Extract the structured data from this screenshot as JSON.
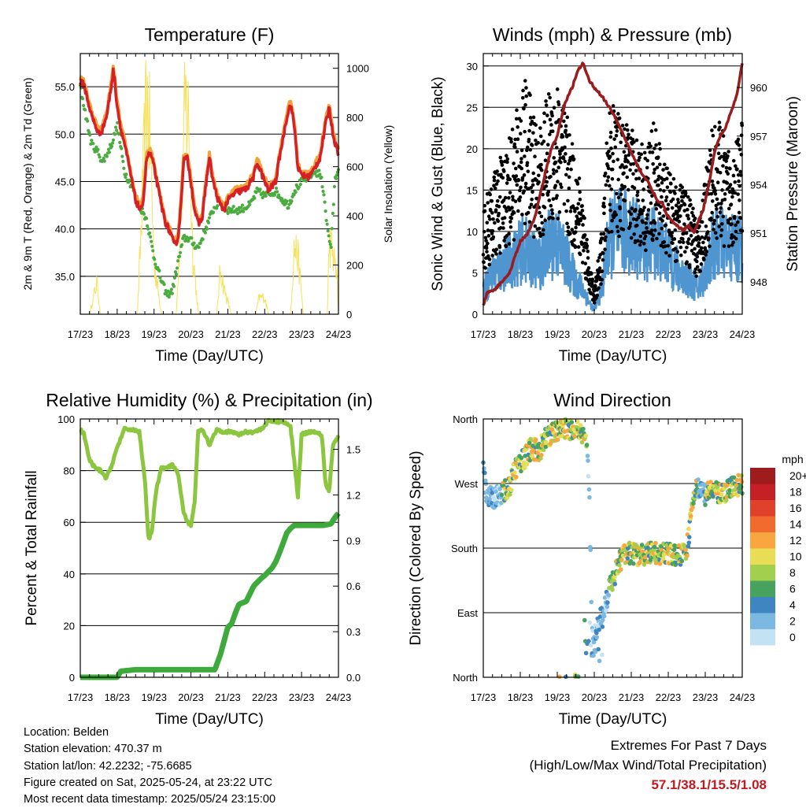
{
  "temperature_panel": {
    "title": "Temperature (F)",
    "xlabel": "Time (Day/UTC)",
    "ylabel_left": "2m & 9m T (Red, Orange) & 2m Td (Green)",
    "ylabel_right": "Solar Insolation (Yellow)"
  },
  "winds_panel": {
    "title": "Winds (mph) & Pressure (mb)",
    "xlabel": "Time (Day/UTC)",
    "ylabel_left": "Sonic Wind & Gust (Blue, Black)",
    "ylabel_right": "Station Pressure (Maroon)"
  },
  "rh_panel": {
    "title": "Relative Humidity (%) & Precipitation (in)",
    "xlabel": "Time (Day/UTC)",
    "ylabel_left": "Percent & Total Rainfall"
  },
  "wind_dir_panel": {
    "title": "Wind Direction",
    "xlabel": "Time (Day/UTC)",
    "ylabel_left": "Direction (Colored By Speed)",
    "legend_title": "mph"
  },
  "info": {
    "location": "Location: Belden",
    "elevation": "Station elevation: 470.37 m",
    "latlon": "Station lat/lon: 42.2232; -75.6685",
    "created": "Figure created on Sat, 2025-05-24, at 23:22 UTC",
    "latest": "Most recent data timestamp: 2025/05/24 23:15:00"
  },
  "extremes": {
    "line1": "Extremes For Past 7 Days",
    "line2": "(High/Low/Max Wind/Total Precipitation)",
    "values": "57.1/38.1/15.5/1.08"
  },
  "colors": {
    "temp_2m": "#d62027",
    "temp_9m": "#f4a13a",
    "dewpoint": "#4aac3f",
    "solar": "#f7e15a",
    "wind": "#4f96d1",
    "gust": "#000000",
    "pressure": "#9b1c1f",
    "rh": "#8cc63f",
    "precip": "#3eaa3c"
  },
  "chart_data": [
    {
      "type": "line",
      "title": "Temperature (F)",
      "xlabel": "Time (Day/UTC)",
      "ylabel": "2m & 9m T (Red, Orange) & 2m Td (Green)",
      "y2label": "Solar Insolation (Yellow)",
      "x_ticks": [
        "17/23",
        "18/23",
        "19/23",
        "20/23",
        "21/23",
        "22/23",
        "23/23",
        "24/23"
      ],
      "xlim": [
        0,
        7
      ],
      "ylim": [
        31,
        58.5
      ],
      "y_ticks": [
        "35.0",
        "40.0",
        "45.0",
        "50.0",
        "55.0"
      ],
      "y_tick_values": [
        35,
        40,
        45,
        50,
        55
      ],
      "y2lim": [
        0,
        1060
      ],
      "y2_ticks": [
        "0",
        "200",
        "400",
        "600",
        "800",
        "1000"
      ],
      "y2_tick_values": [
        0,
        200,
        400,
        600,
        800,
        1000
      ],
      "grid": true,
      "series": [
        {
          "color": "temp_2m",
          "x": [
            0,
            0.1,
            0.3,
            0.5,
            0.6,
            0.72,
            0.82,
            0.9,
            1.0,
            1.1,
            1.2,
            1.35,
            1.5,
            1.65,
            1.72,
            1.8,
            1.9,
            2.0,
            2.1,
            2.2,
            2.3,
            2.45,
            2.55,
            2.65,
            2.72,
            2.8,
            2.9,
            3.0,
            3.1,
            3.2,
            3.3,
            3.4,
            3.5,
            3.6,
            3.7,
            3.8,
            3.9,
            4.0,
            4.2,
            4.5,
            4.7,
            4.8,
            4.95,
            5.1,
            5.3,
            5.4,
            5.6,
            5.7,
            5.8,
            5.9,
            5.97,
            6.1,
            6.2,
            6.3,
            6.5,
            6.65,
            6.75,
            6.85,
            6.95,
            7.0
          ],
          "values": [
            55.5,
            55.2,
            52,
            50,
            50.5,
            52,
            54.5,
            56.8,
            53,
            50.5,
            49,
            46,
            43,
            41.8,
            43.5,
            47.5,
            48,
            46.5,
            44.5,
            42.5,
            40.8,
            39.5,
            38.2,
            39,
            42,
            47.2,
            47.5,
            45,
            42,
            40.5,
            41,
            44.5,
            47.5,
            45,
            43.5,
            42.5,
            42,
            43,
            43.8,
            44.2,
            45.5,
            47,
            45.5,
            44,
            45,
            47.5,
            51.8,
            53.2,
            51,
            46.5,
            45.8,
            45.5,
            45.5,
            46,
            47.5,
            51,
            52.8,
            50,
            48.5,
            48
          ]
        },
        {
          "color": "dewpoint",
          "x": [
            0,
            0.1,
            0.3,
            0.5,
            0.6,
            0.8,
            0.9,
            1.0,
            1.2,
            1.4,
            1.6,
            1.8,
            2.0,
            2.2,
            2.35,
            2.5,
            2.65,
            2.8,
            2.95,
            3.05,
            3.2,
            3.4,
            3.6,
            3.8,
            4.0,
            4.3,
            4.6,
            4.8,
            5.0,
            5.3,
            5.5,
            5.65,
            5.8,
            6.0,
            6.2,
            6.35,
            6.5,
            6.6,
            6.7,
            6.8,
            6.9,
            7.0
          ],
          "values": [
            55,
            53,
            49,
            48,
            47,
            48.5,
            49.5,
            51,
            46,
            44.5,
            42.5,
            41,
            37,
            34.5,
            33,
            33.5,
            36.5,
            39,
            39,
            38.5,
            38,
            40,
            42,
            43,
            42,
            42,
            42.5,
            44,
            43.5,
            44,
            43,
            42.5,
            44,
            45,
            45.5,
            46,
            45.8,
            44,
            40,
            38,
            45,
            46.5
          ]
        },
        {
          "color": "solar",
          "axis": "right",
          "x": [
            0,
            0.25,
            0.45,
            0.55,
            0.7,
            0.95,
            1.2,
            1.55,
            1.7,
            1.8,
            1.9,
            2.0,
            2.2,
            2.4,
            2.6,
            2.75,
            2.85,
            2.95,
            3.05,
            3.2,
            3.45,
            3.7,
            3.8,
            3.9,
            4.1,
            4.45,
            4.75,
            4.85,
            5.0,
            5.1,
            5.45,
            5.7,
            5.8,
            5.9,
            6.05,
            6.45,
            6.7,
            6.75,
            6.8,
            6.95,
            7.0
          ],
          "values": [
            0,
            0,
            150,
            0,
            0,
            0,
            0,
            0,
            620,
            1050,
            800,
            250,
            0,
            0,
            0,
            550,
            1000,
            900,
            300,
            0,
            0,
            0,
            220,
            120,
            0,
            0,
            0,
            80,
            80,
            0,
            0,
            0,
            320,
            280,
            0,
            0,
            0,
            350,
            320,
            200,
            0
          ]
        }
      ]
    },
    {
      "type": "scatter",
      "title": "Winds (mph) & Pressure (mb)",
      "xlabel": "Time (Day/UTC)",
      "ylabel": "Sonic Wind & Gust (Blue, Black)",
      "y2label": "Station Pressure (Maroon)",
      "x_ticks": [
        "17/23",
        "18/23",
        "19/23",
        "20/23",
        "21/23",
        "22/23",
        "23/23",
        "24/23"
      ],
      "xlim": [
        0,
        7
      ],
      "ylim": [
        0,
        31.5
      ],
      "y_ticks": [
        "0",
        "5",
        "10",
        "15",
        "20",
        "25",
        "30"
      ],
      "y_tick_values": [
        0,
        5,
        10,
        15,
        20,
        25,
        30
      ],
      "y2lim": [
        946.0,
        962.1
      ],
      "y2_ticks": [
        "948",
        "951",
        "954",
        "957",
        "960"
      ],
      "y2_tick_values": [
        948,
        951,
        954,
        957,
        960
      ],
      "grid": true,
      "series": [
        {
          "color": "gust",
          "x": [
            0,
            0.3,
            0.6,
            0.9,
            1.1,
            1.3,
            1.5,
            1.7,
            1.9,
            2.1,
            2.3,
            2.5,
            2.7,
            2.85,
            3.0,
            3.2,
            3.4,
            3.6,
            3.8,
            4.0,
            4.2,
            4.4,
            4.6,
            4.8,
            5.0,
            5.3,
            5.6,
            5.8,
            6.0,
            6.2,
            6.4,
            6.6,
            6.8,
            7.0
          ],
          "values": [
            9,
            12,
            14,
            17,
            20,
            18,
            15,
            18,
            20,
            19,
            16,
            13,
            10,
            5,
            2,
            7,
            18,
            17,
            16,
            16,
            15,
            14,
            16,
            14,
            12,
            11,
            10,
            7,
            12,
            16,
            16,
            14,
            15,
            16
          ]
        },
        {
          "color": "wind",
          "x": [
            0,
            0.3,
            0.6,
            0.9,
            1.1,
            1.3,
            1.5,
            1.7,
            1.9,
            2.1,
            2.3,
            2.5,
            2.7,
            2.85,
            3.0,
            3.2,
            3.4,
            3.6,
            3.8,
            4.0,
            4.2,
            4.4,
            4.6,
            4.8,
            5.0,
            5.3,
            5.6,
            5.8,
            6.0,
            6.2,
            6.4,
            6.6,
            6.8,
            7.0
          ],
          "values": [
            3,
            5,
            6,
            7,
            8,
            7,
            6,
            8,
            9,
            8,
            6,
            4,
            3,
            1.5,
            0.5,
            3,
            9,
            10,
            10,
            10,
            9,
            8,
            9,
            8,
            7,
            5,
            4,
            3,
            5,
            8,
            9,
            8,
            8,
            8
          ]
        },
        {
          "color": "pressure",
          "axis": "right",
          "x": [
            0,
            0.1,
            0.3,
            0.5,
            0.7,
            0.85,
            1.0,
            1.2,
            1.4,
            1.55,
            1.7,
            1.85,
            2.0,
            2.2,
            2.4,
            2.55,
            2.7,
            2.85,
            3.0,
            3.2,
            3.4,
            3.6,
            3.8,
            4.0,
            4.2,
            4.5,
            4.7,
            4.85,
            5.0,
            5.2,
            5.4,
            5.55,
            5.7,
            5.85,
            5.95,
            6.1,
            6.25,
            6.4,
            6.55,
            6.7,
            6.85,
            7.0
          ],
          "values": [
            946.5,
            947.3,
            947.5,
            948.0,
            948.5,
            949.5,
            950.5,
            951.0,
            952.0,
            953.5,
            955.0,
            956.3,
            957.0,
            959.0,
            960.0,
            961.0,
            961.5,
            960.5,
            960.0,
            959.5,
            958.8,
            958.0,
            957.0,
            956.0,
            955.0,
            954.0,
            953.0,
            952.8,
            952.0,
            951.5,
            951.2,
            951.5,
            951.0,
            952.0,
            952.5,
            954.0,
            956.0,
            957.0,
            957.5,
            958.5,
            959.5,
            961.5
          ]
        }
      ]
    },
    {
      "type": "line",
      "title": "Relative Humidity (%) & Precipitation (in)",
      "xlabel": "Time (Day/UTC)",
      "ylabel": "Percent & Total Rainfall",
      "x_ticks": [
        "17/23",
        "18/23",
        "19/23",
        "20/23",
        "21/23",
        "22/23",
        "23/23",
        "24/23"
      ],
      "xlim": [
        0,
        7
      ],
      "ylim": [
        0,
        100
      ],
      "y_ticks": [
        "0",
        "20",
        "40",
        "60",
        "80",
        "100"
      ],
      "y_tick_values": [
        0,
        20,
        40,
        60,
        80,
        100
      ],
      "y2lim": [
        0,
        1.7
      ],
      "y2_ticks": [
        "0.0",
        "0.3",
        "0.6",
        "0.9",
        "1.2",
        "1.5"
      ],
      "y2_tick_values": [
        0,
        0.3,
        0.6,
        0.9,
        1.2,
        1.5
      ],
      "grid": true,
      "series": [
        {
          "color": "rh",
          "x": [
            0,
            0.1,
            0.25,
            0.4,
            0.55,
            0.7,
            0.85,
            1.0,
            1.2,
            1.4,
            1.6,
            1.75,
            1.85,
            1.95,
            2.05,
            2.2,
            2.35,
            2.5,
            2.65,
            2.8,
            2.9,
            3.0,
            3.1,
            3.2,
            3.35,
            3.5,
            3.7,
            3.9,
            4.1,
            4.3,
            4.5,
            4.7,
            4.9,
            5.1,
            5.3,
            5.5,
            5.7,
            5.8,
            5.9,
            6.0,
            6.2,
            6.4,
            6.55,
            6.65,
            6.75,
            6.85,
            7.0
          ],
          "values": [
            96,
            94,
            84,
            81,
            80,
            77,
            82,
            89,
            96,
            96,
            95,
            77,
            53,
            57,
            72,
            81,
            81,
            82,
            79,
            64,
            60,
            59,
            68,
            96,
            95,
            90,
            96,
            95,
            95,
            94,
            95,
            95,
            96,
            99,
            99,
            99,
            97,
            84,
            70,
            94,
            95,
            95,
            94,
            75,
            72,
            90,
            93
          ]
        },
        {
          "color": "precip",
          "axis": "right",
          "x": [
            0,
            0.5,
            1.0,
            1.1,
            1.5,
            2.0,
            2.5,
            3.0,
            3.5,
            3.65,
            3.8,
            4.0,
            4.1,
            4.2,
            4.3,
            4.5,
            4.7,
            4.9,
            5.0,
            5.2,
            5.3,
            5.45,
            5.6,
            5.7,
            5.8,
            6.0,
            6.3,
            6.6,
            6.8,
            6.9,
            7.0
          ],
          "values": [
            0,
            0,
            0,
            0.04,
            0.05,
            0.05,
            0.05,
            0.05,
            0.05,
            0.05,
            0.15,
            0.33,
            0.35,
            0.42,
            0.48,
            0.5,
            0.6,
            0.65,
            0.67,
            0.72,
            0.76,
            0.85,
            0.95,
            0.98,
            1.0,
            1.0,
            1.0,
            1.0,
            1.01,
            1.05,
            1.08
          ]
        }
      ]
    },
    {
      "type": "scatter",
      "title": "Wind Direction",
      "xlabel": "Time (Day/UTC)",
      "ylabel": "Direction (Colored By Speed)",
      "x_ticks": [
        "17/23",
        "18/23",
        "19/23",
        "20/23",
        "21/23",
        "22/23",
        "23/23",
        "24/23"
      ],
      "xlim": [
        0,
        7
      ],
      "ylim": [
        0,
        360
      ],
      "y_ticks": [
        "North",
        "East",
        "South",
        "West",
        "North"
      ],
      "y_tick_values": [
        0,
        90,
        180,
        270,
        360
      ],
      "grid": true,
      "colorbar": {
        "title": "mph",
        "labels": [
          "20+",
          "18",
          "16",
          "14",
          "12",
          "10",
          "8",
          "6",
          "4",
          "2",
          "0"
        ],
        "colors": [
          "#9e1b1e",
          "#c42026",
          "#e0412b",
          "#f26b2e",
          "#f9a640",
          "#e9dd55",
          "#a3cf4e",
          "#47a25f",
          "#3f85c1",
          "#7bb9e3",
          "#c3e3f5"
        ]
      },
      "series": [
        {
          "name": "",
          "x": [
            0,
            0.1,
            0.2,
            0.3,
            0.5,
            0.7,
            0.9,
            1.1,
            1.3,
            1.5,
            1.7,
            1.9,
            2.1,
            2.3,
            2.5,
            2.65,
            2.75,
            2.85,
            2.95,
            3.05,
            3.15,
            3.25,
            3.4,
            3.6,
            3.8,
            4.0,
            4.2,
            4.4,
            4.6,
            4.8,
            5.0,
            5.2,
            5.4,
            5.5,
            5.6,
            5.7,
            5.8,
            6.0,
            6.2,
            6.4,
            6.6,
            6.8,
            7.0
          ],
          "values": [
            290,
            245,
            255,
            250,
            255,
            265,
            295,
            305,
            320,
            315,
            335,
            340,
            350,
            345,
            350,
            345,
            330,
            290,
            40,
            60,
            80,
            95,
            120,
            150,
            175,
            172,
            170,
            172,
            175,
            172,
            173,
            170,
            172,
            175,
            220,
            255,
            265,
            255,
            260,
            255,
            260,
            265,
            270
          ]
        }
      ]
    }
  ]
}
